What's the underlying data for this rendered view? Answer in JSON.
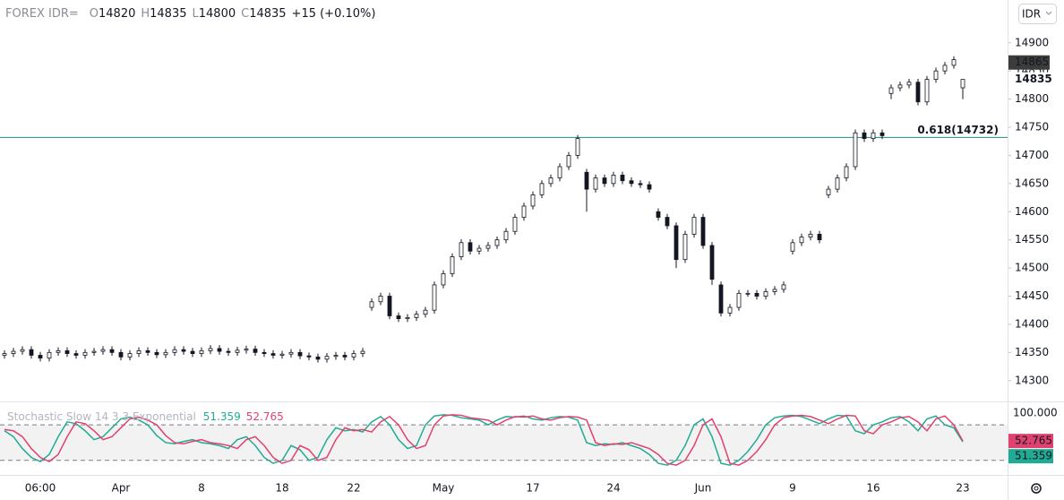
{
  "chart_data": [
    {
      "type": "candlestick",
      "title": "FOREX IDR=",
      "currency": "IDR",
      "ohlc_labels": [
        "O",
        "H",
        "L",
        "C"
      ],
      "change": "+15 (+0.10%)",
      "color": "#131722",
      "categories": [
        null,
        null,
        null,
        null,
        "06:00",
        null,
        null,
        null,
        null,
        null,
        null,
        null,
        null,
        "Apr",
        null,
        null,
        null,
        null,
        null,
        null,
        null,
        null,
        "8",
        null,
        null,
        null,
        null,
        null,
        null,
        null,
        null,
        "18",
        null,
        null,
        null,
        null,
        null,
        null,
        null,
        "22",
        null,
        null,
        null,
        null,
        null,
        null,
        null,
        null,
        null,
        "May",
        null,
        null,
        null,
        null,
        null,
        null,
        null,
        null,
        null,
        "17",
        null,
        null,
        null,
        null,
        null,
        null,
        null,
        null,
        "24",
        null,
        null,
        null,
        null,
        null,
        null,
        null,
        null,
        null,
        "Jun",
        null,
        null,
        null,
        null,
        null,
        null,
        null,
        null,
        null,
        "9",
        null,
        null,
        null,
        null,
        null,
        null,
        null,
        null,
        "16",
        null,
        null,
        null,
        null,
        null,
        null,
        null,
        null,
        null,
        "23"
      ],
      "open": [
        14345,
        14348,
        14352,
        14355,
        14345,
        14340,
        14350,
        14353,
        14348,
        14345,
        14350,
        14352,
        14355,
        14350,
        14342,
        14348,
        14353,
        14350,
        14346,
        14350,
        14355,
        14352,
        14348,
        14353,
        14357,
        14352,
        14350,
        14354,
        14356,
        14350,
        14348,
        14345,
        14347,
        14350,
        14344,
        14342,
        14338,
        14343,
        14345,
        14342,
        14348,
        14430,
        14440,
        14450,
        14415,
        14410,
        14412,
        14418,
        14425,
        14470,
        14490,
        14520,
        14545,
        14530,
        14535,
        14540,
        14550,
        14565,
        14590,
        14610,
        14630,
        14650,
        14660,
        14680,
        14700,
        14670,
        14640,
        14660,
        14650,
        14665,
        14655,
        14650,
        14648,
        14600,
        14590,
        14575,
        14515,
        14560,
        14590,
        14540,
        14470,
        14420,
        14430,
        14455,
        14455,
        14450,
        14458,
        14462,
        14530,
        14545,
        14555,
        14560,
        14630,
        14640,
        14660,
        14680,
        14740,
        14730,
        14740,
        14810,
        14820,
        14825,
        14830,
        14795,
        14835,
        14850,
        14860,
        14820
      ],
      "high": [
        14354,
        14358,
        14361,
        14361,
        14351,
        14356,
        14359,
        14359,
        14354,
        14356,
        14358,
        14361,
        14361,
        14356,
        14354,
        14359,
        14359,
        14356,
        14356,
        14361,
        14361,
        14358,
        14359,
        14363,
        14363,
        14358,
        14360,
        14362,
        14362,
        14356,
        14354,
        14353,
        14356,
        14356,
        14350,
        14348,
        14349,
        14351,
        14351,
        14354,
        14358,
        14446,
        14456,
        14456,
        14421,
        14418,
        14424,
        14431,
        14476,
        14496,
        14526,
        14551,
        14551,
        14541,
        14546,
        14556,
        14571,
        14596,
        14616,
        14636,
        14656,
        14666,
        14686,
        14706,
        14736,
        14676,
        14666,
        14666,
        14671,
        14671,
        14661,
        14656,
        14654,
        14606,
        14596,
        14581,
        14566,
        14596,
        14596,
        14546,
        14476,
        14436,
        14461,
        14461,
        14461,
        14464,
        14468,
        14476,
        14551,
        14561,
        14566,
        14566,
        14646,
        14666,
        14686,
        14746,
        14746,
        14746,
        14746,
        14826,
        14831,
        14836,
        14836,
        14841,
        14856,
        14866,
        14876,
        14835
      ],
      "low": [
        14339,
        14342,
        14346,
        14339,
        14334,
        14334,
        14344,
        14342,
        14339,
        14339,
        14344,
        14346,
        14344,
        14336,
        14336,
        14342,
        14344,
        14340,
        14340,
        14344,
        14346,
        14342,
        14342,
        14347,
        14346,
        14344,
        14344,
        14348,
        14344,
        14342,
        14339,
        14339,
        14341,
        14338,
        14336,
        14332,
        14332,
        14337,
        14336,
        14336,
        14342,
        14424,
        14434,
        14409,
        14404,
        14404,
        14406,
        14412,
        14419,
        14464,
        14484,
        14514,
        14524,
        14524,
        14529,
        14534,
        14544,
        14559,
        14584,
        14604,
        14624,
        14644,
        14654,
        14674,
        14694,
        14600,
        14634,
        14644,
        14644,
        14649,
        14644,
        14642,
        14634,
        14584,
        14569,
        14500,
        14509,
        14554,
        14534,
        14470,
        14414,
        14414,
        14424,
        14449,
        14444,
        14444,
        14452,
        14456,
        14524,
        14539,
        14549,
        14544,
        14624,
        14634,
        14654,
        14674,
        14724,
        14724,
        14729,
        14800,
        14814,
        14819,
        14789,
        14789,
        14829,
        14844,
        14854,
        14800
      ],
      "close": [
        14348,
        14352,
        14355,
        14345,
        14340,
        14350,
        14353,
        14348,
        14345,
        14350,
        14352,
        14355,
        14350,
        14342,
        14348,
        14353,
        14350,
        14346,
        14350,
        14355,
        14352,
        14348,
        14353,
        14357,
        14352,
        14350,
        14354,
        14356,
        14350,
        14348,
        14345,
        14347,
        14350,
        14344,
        14342,
        14338,
        14343,
        14345,
        14342,
        14348,
        14352,
        14440,
        14450,
        14415,
        14410,
        14412,
        14418,
        14425,
        14470,
        14490,
        14520,
        14545,
        14530,
        14535,
        14540,
        14550,
        14565,
        14590,
        14610,
        14630,
        14650,
        14660,
        14680,
        14700,
        14730,
        14640,
        14660,
        14650,
        14665,
        14655,
        14650,
        14648,
        14640,
        14590,
        14575,
        14515,
        14560,
        14590,
        14540,
        14480,
        14420,
        14430,
        14455,
        14455,
        14450,
        14458,
        14462,
        14470,
        14545,
        14555,
        14560,
        14550,
        14640,
        14660,
        14680,
        14740,
        14730,
        14740,
        14735,
        14820,
        14825,
        14830,
        14795,
        14835,
        14850,
        14860,
        14870,
        14835
      ],
      "hlines": [
        {
          "value": 14732,
          "label": "0.618(14732)",
          "color": "#22877c"
        }
      ],
      "price_markers": [
        14865
      ],
      "ylim": [
        14263,
        14976
      ],
      "yticks": [
        14300,
        14350,
        14400,
        14450,
        14500,
        14550,
        14600,
        14650,
        14700,
        14750,
        14800,
        14850,
        14900
      ],
      "grid": false
    },
    {
      "type": "line",
      "title": "Stochastic Slow 14 3 3 Exponential",
      "series": [
        {
          "color": "#22ab94",
          "values": [
            70,
            60,
            40,
            25,
            18,
            30,
            60,
            85,
            82,
            70,
            55,
            60,
            75,
            90,
            93,
            88,
            80,
            62,
            50,
            48,
            52,
            55,
            50,
            48,
            45,
            40,
            55,
            60,
            45,
            25,
            15,
            20,
            45,
            38,
            20,
            25,
            55,
            75,
            70,
            72,
            68,
            85,
            94,
            80,
            55,
            40,
            45,
            80,
            95,
            97,
            96,
            92,
            90,
            88,
            80,
            88,
            94,
            93,
            95,
            90,
            88,
            92,
            94,
            93,
            88,
            50,
            45,
            48,
            47,
            50,
            45,
            40,
            30,
            15,
            12,
            20,
            45,
            80,
            90,
            60,
            15,
            12,
            20,
            35,
            55,
            80,
            92,
            95,
            96,
            94,
            88,
            82,
            90,
            96,
            95,
            70,
            65,
            80,
            85,
            92,
            94,
            85,
            70,
            90,
            95,
            80,
            75,
            51.359
          ]
        },
        {
          "color": "#e0426f",
          "values": [
            72,
            70,
            60,
            40,
            25,
            18,
            30,
            60,
            85,
            82,
            70,
            55,
            60,
            75,
            90,
            93,
            88,
            80,
            62,
            50,
            48,
            52,
            55,
            50,
            48,
            45,
            40,
            55,
            60,
            45,
            25,
            15,
            20,
            45,
            38,
            20,
            25,
            55,
            75,
            70,
            72,
            68,
            85,
            94,
            80,
            55,
            40,
            45,
            80,
            95,
            97,
            96,
            92,
            90,
            88,
            80,
            88,
            94,
            93,
            95,
            90,
            88,
            92,
            94,
            93,
            88,
            50,
            45,
            48,
            47,
            50,
            45,
            40,
            30,
            15,
            12,
            20,
            45,
            80,
            90,
            60,
            15,
            12,
            20,
            35,
            55,
            80,
            92,
            95,
            96,
            94,
            88,
            82,
            90,
            96,
            95,
            70,
            65,
            80,
            85,
            92,
            94,
            85,
            70,
            90,
            95,
            80,
            52.765
          ]
        }
      ],
      "bands": [
        20,
        80
      ],
      "ylim": [
        -4.5,
        118
      ],
      "yticks": [
        {
          "value": 100,
          "label": "100.000"
        }
      ]
    }
  ]
}
